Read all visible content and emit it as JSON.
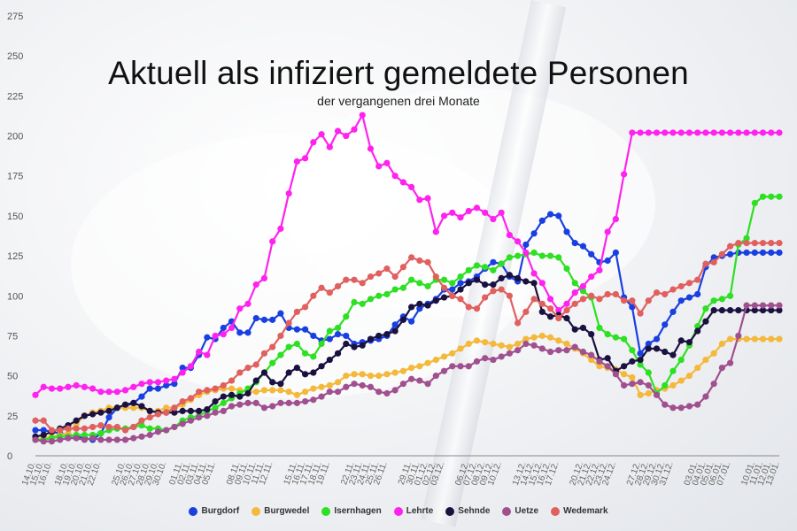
{
  "chart_data": {
    "type": "line",
    "title": "Aktuell als infiziert gemeldete Personen",
    "subtitle": "der vergangenen drei Monate",
    "xlabel": "",
    "ylabel": "",
    "ylim": [
      0,
      275
    ],
    "yticks": [
      0,
      25,
      50,
      75,
      100,
      125,
      150,
      175,
      200,
      225,
      250,
      275
    ],
    "grid": false,
    "legend_position": "bottom",
    "x": [
      "14.10.",
      "15.10.",
      "16.10.",
      "17.10.",
      "18.10.",
      "19.10.",
      "20.10.",
      "21.10.",
      "22.10.",
      "23.10.",
      "24.10.",
      "25.10.",
      "26.10.",
      "27.10.",
      "28.10.",
      "29.10.",
      "30.10.",
      "31.10.",
      "01.11.",
      "02.11.",
      "03.11.",
      "04.11.",
      "05.11.",
      "06.11.",
      "07.11.",
      "08.11.",
      "09.11.",
      "10.11.",
      "11.11.",
      "12.11.",
      "13.11.",
      "14.11.",
      "15.11.",
      "16.11.",
      "17.11.",
      "18.11.",
      "19.11.",
      "20.11.",
      "21.11.",
      "22.11.",
      "23.11.",
      "24.11.",
      "25.11.",
      "26.11.",
      "27.11.",
      "28.11.",
      "29.11.",
      "30.11.",
      "01.12.",
      "02.12.",
      "03.12.",
      "04.12.",
      "05.12.",
      "06.12.",
      "07.12.",
      "08.12.",
      "09.12.",
      "10.12.",
      "11.12.",
      "12.12.",
      "13.12.",
      "14.12.",
      "15.12.",
      "16.12.",
      "17.12.",
      "18.12.",
      "19.12.",
      "20.12.",
      "21.12.",
      "22.12.",
      "23.12.",
      "24.12.",
      "25.12.",
      "26.12.",
      "27.12.",
      "28.12.",
      "29.12.",
      "30.12.",
      "31.12.",
      "01.01.",
      "02.01.",
      "03.01.",
      "04.01.",
      "05.01.",
      "06.01.",
      "07.01.",
      "08.01.",
      "09.01.",
      "10.01.",
      "11.01.",
      "12.01.",
      "13.01."
    ],
    "xticks": [
      "14.10.",
      "15.10.",
      "16.10.",
      "18.10.",
      "19.10.",
      "20.10.",
      "21.10.",
      "22.10.",
      "25.10.",
      "26.10.",
      "27.10.",
      "28.10.",
      "29.10.",
      "30.10.",
      "01.11.",
      "02.11.",
      "03.11.",
      "04.11.",
      "05.11.",
      "08.11.",
      "09.11.",
      "10.11.",
      "11.11.",
      "12.11.",
      "15.11.",
      "16.11.",
      "17.11.",
      "18.11.",
      "19.11.",
      "22.11.",
      "23.11.",
      "24.11.",
      "25.11.",
      "26.11.",
      "29.11.",
      "30.11.",
      "01.12.",
      "02.12.",
      "03.12.",
      "06.12.",
      "07.12.",
      "08.12.",
      "09.12.",
      "10.12.",
      "13.12.",
      "14.12.",
      "15.12.",
      "16.12.",
      "17.12.",
      "20.12.",
      "21.12.",
      "22.12.",
      "23.12.",
      "24.12.",
      "27.12.",
      "28.12.",
      "29.12.",
      "30.12.",
      "31.12.",
      "03.01.",
      "04.01.",
      "05.01.",
      "06.01.",
      "07.01.",
      "10.01.",
      "11.01.",
      "12.01.",
      "13.01."
    ],
    "series": [
      {
        "name": "Burgdorf",
        "color": "#1a3fe0",
        "values": [
          16,
          16,
          15,
          14,
          13,
          12,
          11,
          10,
          14,
          24,
          30,
          31,
          33,
          37,
          42,
          42,
          44,
          45,
          55,
          55,
          63,
          74,
          73,
          80,
          84,
          77,
          77,
          86,
          85,
          85,
          89,
          80,
          79,
          79,
          75,
          72,
          73,
          76,
          75,
          70,
          71,
          72,
          73,
          75,
          82,
          87,
          84,
          92,
          95,
          98,
          104,
          104,
          108,
          109,
          112,
          117,
          121,
          120,
          112,
          109,
          132,
          139,
          147,
          151,
          150,
          140,
          133,
          131,
          126,
          121,
          122,
          127,
          99,
          93,
          64,
          70,
          73,
          82,
          90,
          97,
          99,
          101,
          118,
          124,
          125,
          126,
          127,
          127,
          127,
          127,
          127,
          127
        ]
      },
      {
        "name": "Burgwedel",
        "color": "#f4b83a",
        "values": [
          10,
          11,
          12,
          13,
          14,
          20,
          25,
          27,
          28,
          30,
          30,
          30,
          30,
          30,
          28,
          28,
          30,
          30,
          32,
          35,
          38,
          40,
          41,
          42,
          42,
          41,
          40,
          40,
          41,
          41,
          41,
          40,
          38,
          40,
          42,
          43,
          44,
          46,
          50,
          51,
          51,
          50,
          50,
          51,
          52,
          53,
          55,
          56,
          58,
          60,
          62,
          64,
          67,
          70,
          72,
          71,
          70,
          69,
          68,
          70,
          73,
          74,
          75,
          74,
          72,
          70,
          67,
          64,
          60,
          56,
          55,
          54,
          51,
          49,
          38,
          39,
          41,
          42,
          44,
          47,
          50,
          55,
          60,
          64,
          70,
          73,
          73,
          73,
          73,
          73,
          73,
          73
        ]
      },
      {
        "name": "Isernhagen",
        "color": "#2de022",
        "values": [
          10,
          10,
          11,
          12,
          12,
          13,
          13,
          13,
          14,
          16,
          17,
          17,
          18,
          19,
          17,
          17,
          16,
          18,
          22,
          24,
          25,
          28,
          30,
          33,
          36,
          39,
          42,
          46,
          52,
          58,
          63,
          68,
          70,
          64,
          62,
          70,
          78,
          80,
          87,
          96,
          95,
          98,
          100,
          101,
          104,
          105,
          110,
          108,
          106,
          110,
          110,
          108,
          112,
          116,
          119,
          118,
          116,
          120,
          124,
          125,
          126,
          127,
          125,
          125,
          124,
          117,
          108,
          103,
          99,
          80,
          76,
          74,
          73,
          66,
          57,
          52,
          39,
          44,
          53,
          60,
          69,
          81,
          92,
          97,
          98,
          100,
          132,
          136,
          158,
          162,
          162,
          162
        ]
      },
      {
        "name": "Lehrte",
        "color": "#ff22ee",
        "values": [
          38,
          43,
          42,
          42,
          43,
          44,
          43,
          42,
          40,
          40,
          40,
          41,
          43,
          45,
          46,
          46,
          47,
          48,
          52,
          56,
          65,
          63,
          75,
          76,
          80,
          92,
          95,
          107,
          111,
          134,
          142,
          164,
          184,
          186,
          196,
          201,
          193,
          203,
          200,
          204,
          213,
          192,
          181,
          183,
          175,
          171,
          168,
          160,
          161,
          140,
          150,
          152,
          149,
          153,
          155,
          152,
          148,
          152,
          138,
          134,
          127,
          114,
          108,
          98,
          91,
          95,
          102,
          106,
          112,
          116,
          140,
          148,
          176,
          202,
          202,
          202,
          202,
          202,
          202,
          202,
          202,
          202,
          202,
          202,
          202,
          202,
          202,
          202,
          202,
          202,
          202,
          202
        ]
      },
      {
        "name": "Sehnde",
        "color": "#1a1140",
        "values": [
          12,
          13,
          15,
          17,
          19,
          22,
          25,
          26,
          27,
          28,
          30,
          32,
          33,
          31,
          28,
          27,
          27,
          27,
          28,
          28,
          28,
          29,
          34,
          37,
          38,
          37,
          39,
          47,
          52,
          46,
          45,
          52,
          55,
          51,
          52,
          56,
          60,
          64,
          70,
          68,
          69,
          73,
          75,
          76,
          78,
          85,
          93,
          95,
          94,
          97,
          99,
          100,
          104,
          108,
          110,
          107,
          107,
          111,
          113,
          111,
          109,
          108,
          90,
          87,
          88,
          86,
          79,
          80,
          76,
          60,
          61,
          53,
          56,
          59,
          60,
          67,
          67,
          65,
          63,
          72,
          71,
          78,
          84,
          91,
          91,
          91,
          91,
          91,
          91,
          91,
          91,
          91
        ]
      },
      {
        "name": "Uetze",
        "color": "#a0508f",
        "values": [
          10,
          9,
          9,
          10,
          11,
          11,
          10,
          11,
          10,
          10,
          10,
          10,
          11,
          12,
          13,
          15,
          16,
          18,
          20,
          22,
          24,
          25,
          27,
          28,
          31,
          32,
          33,
          33,
          30,
          31,
          33,
          33,
          33,
          34,
          35,
          37,
          40,
          40,
          43,
          45,
          44,
          43,
          40,
          39,
          41,
          45,
          48,
          47,
          45,
          50,
          53,
          56,
          56,
          56,
          59,
          61,
          60,
          62,
          64,
          66,
          70,
          69,
          67,
          65,
          66,
          66,
          68,
          65,
          63,
          59,
          56,
          51,
          44,
          45,
          46,
          44,
          38,
          32,
          30,
          30,
          31,
          32,
          37,
          45,
          55,
          58,
          75,
          94,
          94,
          94,
          94,
          94
        ]
      },
      {
        "name": "Wedemark",
        "color": "#e0605f",
        "values": [
          22,
          22,
          16,
          16,
          17,
          17,
          17,
          18,
          19,
          18,
          18,
          16,
          18,
          22,
          24,
          26,
          27,
          30,
          34,
          36,
          40,
          41,
          42,
          44,
          47,
          52,
          55,
          57,
          64,
          68,
          75,
          83,
          90,
          93,
          100,
          105,
          102,
          106,
          110,
          110,
          108,
          112,
          114,
          117,
          112,
          118,
          124,
          122,
          121,
          112,
          105,
          100,
          98,
          93,
          92,
          99,
          103,
          104,
          100,
          83,
          90,
          98,
          95,
          92,
          86,
          91,
          95,
          98,
          100,
          98,
          101,
          101,
          97,
          97,
          89,
          97,
          102,
          101,
          104,
          106,
          108,
          110,
          120,
          121,
          126,
          131,
          133,
          133,
          133,
          133,
          133,
          133
        ]
      }
    ]
  }
}
